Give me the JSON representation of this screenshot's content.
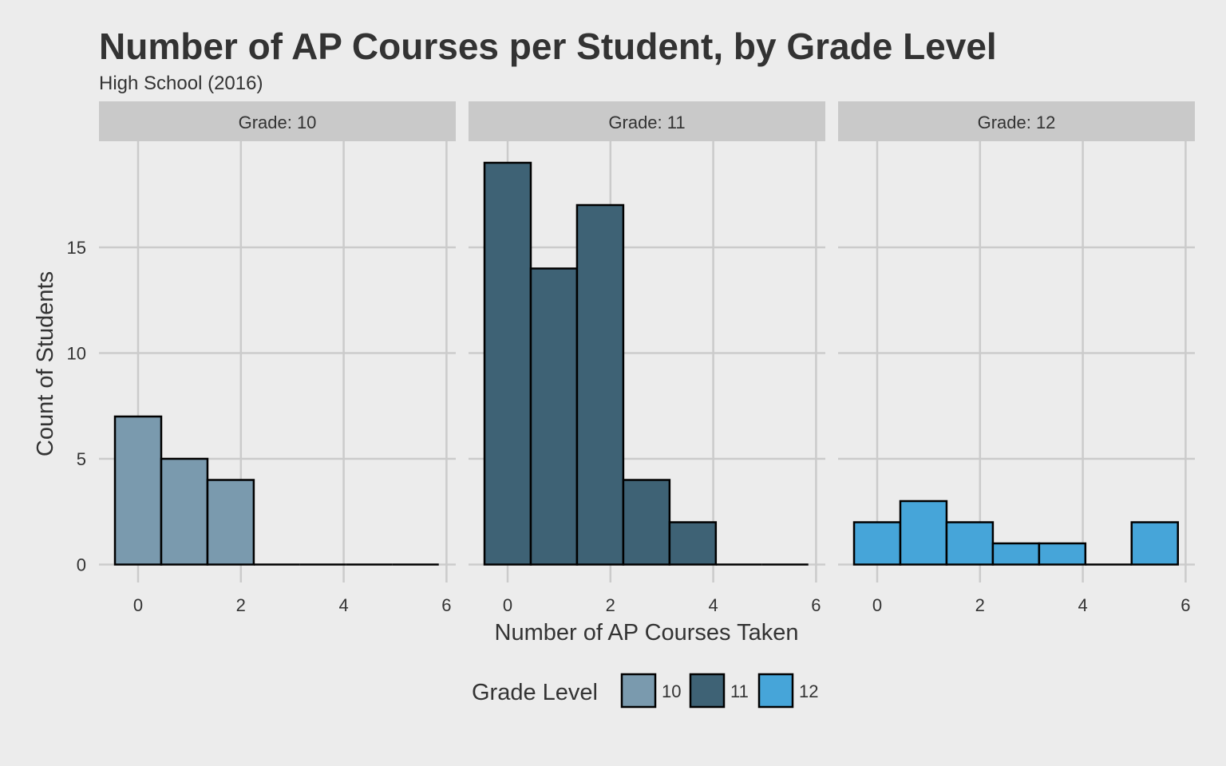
{
  "chart_data": {
    "type": "bar",
    "title": "Number of AP Courses per Student, by Grade Level",
    "subtitle": "High School (2016)",
    "xlabel": "Number of AP Courses Taken",
    "ylabel": "Count of Students",
    "xlim": [
      -0.8,
      6.2
    ],
    "ylim": [
      -0.7,
      19.6
    ],
    "x_ticks": [
      0,
      2,
      4,
      6
    ],
    "y_ticks": [
      0,
      5,
      10,
      15
    ],
    "grid": true,
    "legend": {
      "title": "Grade Level",
      "position": "bottom",
      "entries": [
        {
          "label": "10",
          "color": "#7a9aae"
        },
        {
          "label": "11",
          "color": "#3e6275"
        },
        {
          "label": "12",
          "color": "#46a5d9"
        }
      ]
    },
    "bin_edges": [
      -0.45,
      0.45,
      1.35,
      2.25,
      3.15,
      4.05,
      4.95,
      5.85
    ],
    "panels": [
      {
        "label": "Grade: 10",
        "grade": "10",
        "color": "#7a9aae",
        "counts": [
          7,
          5,
          4,
          0,
          0,
          0,
          0
        ]
      },
      {
        "label": "Grade: 11",
        "grade": "11",
        "color": "#3e6275",
        "counts": [
          19,
          14,
          17,
          4,
          2,
          0,
          0
        ]
      },
      {
        "label": "Grade: 12",
        "grade": "12",
        "color": "#46a5d9",
        "counts": [
          2,
          3,
          2,
          1,
          1,
          0,
          2
        ]
      }
    ]
  }
}
